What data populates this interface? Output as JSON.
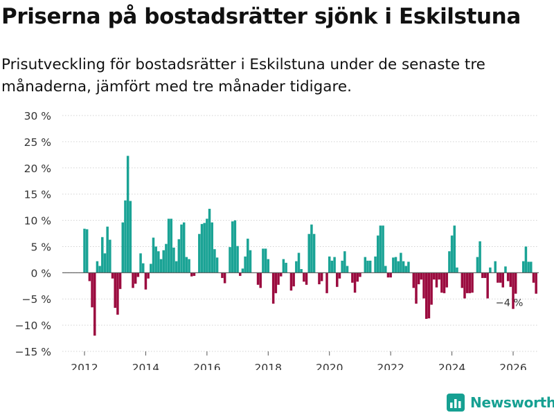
{
  "title": "Priserna på bostadsrätter sjönk i Eskilstuna",
  "subtitle": "Prisutveckling för bostadsrätter i Eskilstuna under de senaste tre månaderna, jämfört med tre månader tidigare.",
  "brand": {
    "name": "Newsworthy",
    "icon": "newsworthy-logo-icon"
  },
  "colors": {
    "positive": "#1aa395",
    "negative": "#9b0b3f",
    "grid": "#d2d2d2",
    "axis": "#555555",
    "text": "#333333"
  },
  "chart_data": {
    "type": "bar",
    "title": "Priserna på bostadsrätter sjönk i Eskilstuna",
    "xlabel": "",
    "ylabel": "",
    "x_unit": "year (monthly bars)",
    "ylim": [
      -15,
      30
    ],
    "yticks": [
      -15,
      -10,
      -5,
      0,
      5,
      10,
      15,
      20,
      25,
      30
    ],
    "ytick_labels": [
      "−15 %",
      "−10 %",
      "−5 %",
      "0 %",
      "5 %",
      "10 %",
      "15 %",
      "20 %",
      "25 %",
      "30 %"
    ],
    "xlim": [
      2011.5,
      2026.6
    ],
    "xticks": [
      2012,
      2014,
      2016,
      2018,
      2020,
      2022,
      2024,
      2026
    ],
    "xtick_labels": [
      "2012",
      "2014",
      "2016",
      "2018",
      "2020",
      "2022",
      "2024",
      "2026"
    ],
    "grid": true,
    "start": 2012.0,
    "step": 0.0833333,
    "values": [
      8.4,
      8.3,
      -1.6,
      -6.6,
      -12,
      2.2,
      1.3,
      6.8,
      3.7,
      8.8,
      6.3,
      -1.1,
      -6.7,
      -8,
      -3.1,
      9.6,
      13.8,
      22.3,
      13.7,
      -2.9,
      -2.1,
      -0.8,
      3.7,
      1.8,
      -3.2,
      -1.1,
      1.7,
      6.7,
      5,
      4.1,
      2.6,
      4.3,
      5.5,
      10.3,
      10.3,
      4.8,
      2.2,
      6.4,
      9.2,
      9.6,
      3,
      2.6,
      -0.7,
      -0.6,
      0,
      7.4,
      9.3,
      9.5,
      10.3,
      12.2,
      9.6,
      4.5,
      2.9,
      0,
      -1,
      -2,
      0,
      4.9,
      9.8,
      10,
      5.1,
      -0.6,
      0.8,
      3.1,
      6.5,
      4.3,
      0,
      0,
      -2.3,
      -2.9,
      4.6,
      4.6,
      2.6,
      0,
      -5.9,
      -3.9,
      -2.3,
      -0.7,
      2.6,
      1.9,
      0,
      -3.4,
      -2.6,
      2.2,
      3.8,
      0.7,
      -1.7,
      -2.3,
      7.4,
      9.2,
      7.4,
      0,
      -2.2,
      -1.6,
      0,
      -3.9,
      3.1,
      2.3,
      3,
      -2.7,
      -1.1,
      2.3,
      4.1,
      1.3,
      0,
      -1.9,
      -3.8,
      -1.7,
      -0.8,
      0,
      3,
      2.3,
      2.3,
      0,
      3.1,
      7.1,
      9,
      9,
      1.3,
      -0.9,
      -0.9,
      2.9,
      3,
      2.2,
      3.8,
      2.2,
      1.3,
      2.1,
      0,
      -2.9,
      -5.9,
      -2.2,
      -1.3,
      -4.9,
      -8.8,
      -8.7,
      -6.1,
      -1.3,
      -2.8,
      -1.3,
      -3.8,
      -3.9,
      -2.8,
      4.1,
      7.1,
      9,
      1,
      0,
      -2.9,
      -4.9,
      -3.9,
      -3.9,
      -3.8,
      0,
      3,
      6,
      -1,
      -1,
      -4.9,
      1,
      0,
      2.2,
      -1.9,
      -1.9,
      -2.8,
      1.2,
      -1.6,
      -2.7,
      -6.9,
      -4,
      0,
      0,
      2.2,
      5,
      2.1,
      2.1,
      -1.9,
      -4
    ],
    "annotation": {
      "text": "−4 %",
      "x": 2025.833,
      "y": -4
    }
  }
}
